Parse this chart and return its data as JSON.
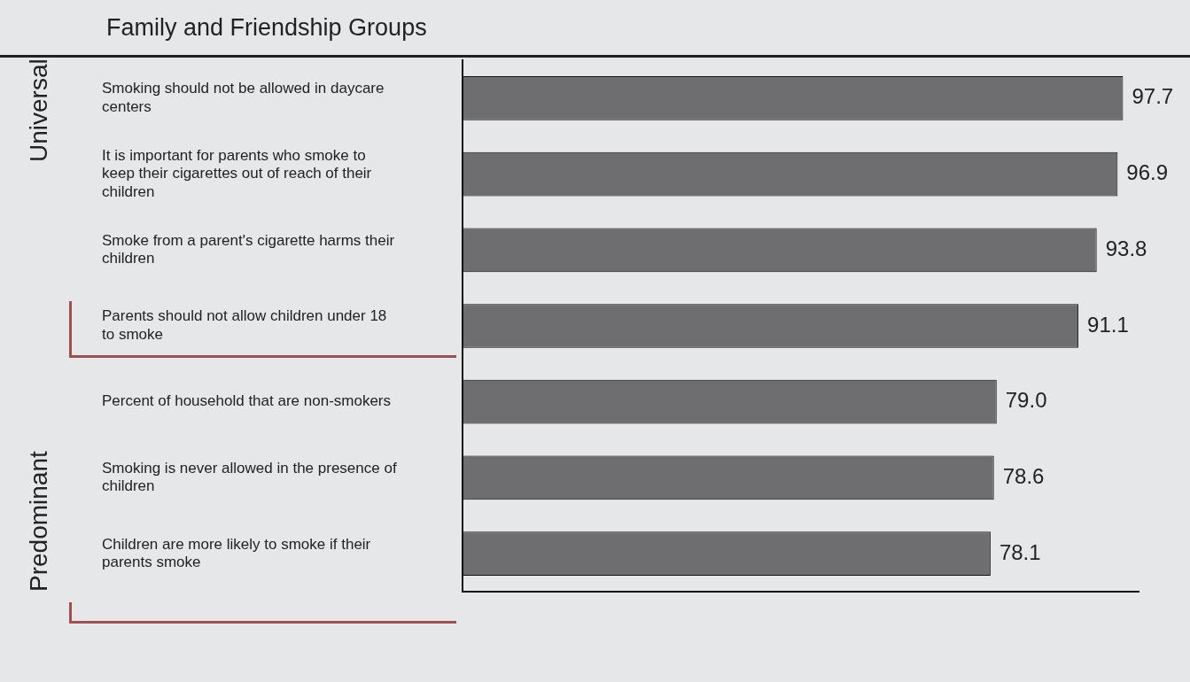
{
  "chart_data": {
    "type": "bar",
    "orientation": "horizontal",
    "title": "Family and Friendship Groups",
    "categories": [
      "Smoking should not be allowed in daycare centers",
      "It is important for parents who smoke to keep their cigarettes out of reach of their children",
      "Smoke from a parent's cigarette harms their children",
      "Parents should not allow children under 18 to smoke",
      "Percent of household that are non-smokers",
      "Smoking is never allowed in the presence of children",
      "Children are more likely to smoke if their parents smoke"
    ],
    "values": [
      97.7,
      96.9,
      93.8,
      91.1,
      79.0,
      78.6,
      78.1
    ],
    "value_labels": [
      "97.7",
      "96.9",
      "93.8",
      "91.1",
      "79.0",
      "78.6",
      "78.1"
    ],
    "color": "#6e6e70",
    "tick_labels": "y",
    "grid": false,
    "legend": false,
    "annotations": [
      "Universal",
      "Predominant"
    ]
  }
}
